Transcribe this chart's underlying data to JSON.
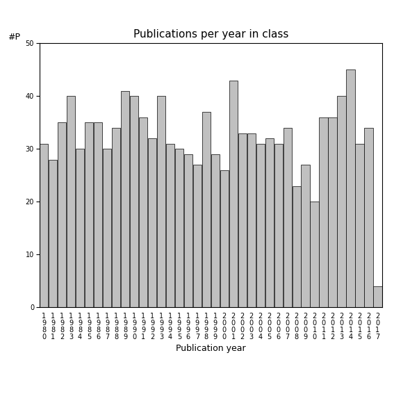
{
  "years": [
    "1980",
    "1981",
    "1982",
    "1983",
    "1984",
    "1985",
    "1986",
    "1987",
    "1988",
    "1989",
    "1990",
    "1991",
    "1992",
    "1993",
    "1994",
    "1995",
    "1996",
    "1997",
    "1998",
    "1999",
    "2000",
    "2001",
    "2002",
    "2003",
    "2004",
    "2005",
    "2006",
    "2007",
    "2008",
    "2009",
    "2010",
    "2011",
    "2012",
    "2013",
    "2014",
    "2015",
    "2016",
    "2017"
  ],
  "values": [
    31,
    28,
    35,
    40,
    30,
    35,
    35,
    30,
    34,
    41,
    40,
    36,
    32,
    40,
    31,
    30,
    29,
    27,
    37,
    29,
    26,
    43,
    33,
    33,
    31,
    32,
    31,
    34,
    23,
    27,
    20,
    36,
    36,
    40,
    45,
    31,
    34,
    4
  ],
  "bar_color": "#c0c0c0",
  "bar_edgecolor": "#000000",
  "title": "Publications per year in class",
  "xlabel": "Publication year",
  "ylabel": "#P",
  "ylim": [
    0,
    50
  ],
  "yticks": [
    0,
    10,
    20,
    30,
    40,
    50
  ],
  "title_fontsize": 11,
  "axis_label_fontsize": 9,
  "tick_fontsize": 7,
  "bg_color": "#ffffff"
}
